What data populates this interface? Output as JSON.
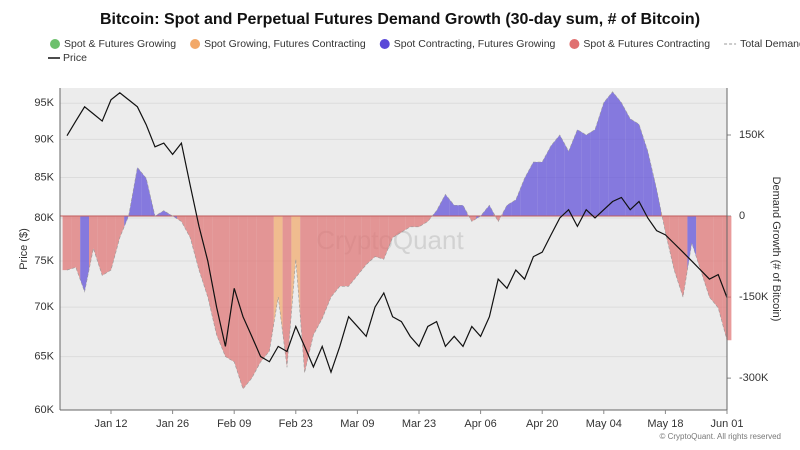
{
  "chart_data": {
    "type": "price-demand",
    "title": "Bitcoin: Spot and Perpetual Futures Demand Growth (30-day sum, # of Bitcoin)",
    "ylabel": "Price ($)",
    "y2label": "Demand Growth (# of Bitcoin)",
    "watermark": "CryptoQuant",
    "footer": "© CryptoQuant. All rights reserved",
    "categories": [
      null,
      null,
      null,
      null,
      null,
      "Jan 12",
      null,
      null,
      null,
      null,
      null,
      null,
      "Jan 26",
      null,
      null,
      null,
      null,
      null,
      null,
      "Feb 09",
      null,
      null,
      null,
      null,
      null,
      null,
      "Feb 23",
      null,
      null,
      null,
      null,
      null,
      null,
      "Mar 09",
      null,
      null,
      null,
      null,
      null,
      null,
      "Mar 23",
      null,
      null,
      null,
      null,
      null,
      null,
      "Apr 06",
      null,
      null,
      null,
      null,
      null,
      null,
      "Apr 20",
      null,
      null,
      null,
      null,
      null,
      null,
      "May 04",
      null,
      null,
      null,
      null,
      null,
      null,
      "May 18",
      null,
      null,
      null,
      null,
      null,
      null,
      "Jun 01"
    ],
    "ylim": [
      60000,
      97200
    ],
    "ylog": true,
    "yticks": [
      {
        "value": 60000,
        "label": "60K"
      },
      {
        "value": 65000,
        "label": "65K"
      },
      {
        "value": 70000,
        "label": "70K"
      },
      {
        "value": 75000,
        "label": "75K"
      },
      {
        "value": 80000,
        "label": "80K"
      },
      {
        "value": 85000,
        "label": "85K"
      },
      {
        "value": 90000,
        "label": "90K"
      },
      {
        "value": 95000,
        "label": "95K"
      }
    ],
    "y2lim": [
      -359000,
      237000
    ],
    "y2ticks": [
      {
        "value": -300000,
        "label": "-300K"
      },
      {
        "value": -150000,
        "label": "-150K"
      },
      0,
      {
        "value": 150000,
        "label": "150K"
      }
    ],
    "grid": true,
    "regimes": [
      {
        "name": "Spot & Futures Growing",
        "color": "#6cc06c"
      },
      {
        "name": "Spot Growing, Futures Contracting",
        "color": "#f2a868"
      },
      {
        "name": "Spot Contracting, Futures Growing",
        "color": "#5a48d8"
      },
      {
        "name": "Spot & Futures Contracting",
        "color": "#e07070"
      }
    ],
    "series": [
      {
        "name": "Price",
        "color": "#111111",
        "axis": "y",
        "values": [
          90500,
          92500,
          94500,
          93500,
          92500,
          95500,
          96500,
          95500,
          94500,
          92000,
          89000,
          89500,
          88000,
          89500,
          84000,
          79000,
          75000,
          70000,
          66000,
          72000,
          69000,
          67000,
          65000,
          64500,
          66000,
          65500,
          68000,
          66000,
          64000,
          66000,
          63500,
          66000,
          69000,
          68000,
          67000,
          70000,
          71500,
          69000,
          68500,
          67000,
          66000,
          68000,
          68500,
          66000,
          67000,
          66000,
          68000,
          67000,
          69000,
          73000,
          72000,
          74000,
          73000,
          75500,
          76000,
          78000,
          80000,
          81000,
          79000,
          81000,
          80000,
          81000,
          82000,
          82500,
          81000,
          82000,
          80000,
          78500,
          78000,
          77000,
          76000,
          75000,
          74000,
          73000,
          73500,
          71000
        ]
      },
      {
        "name": "Total Demand",
        "color": "#999999",
        "axis": "y2",
        "values": [
          -100000,
          -95000,
          -140000,
          -60000,
          -110000,
          -100000,
          -40000,
          0,
          90000,
          70000,
          0,
          10000,
          0,
          -10000,
          -40000,
          -100000,
          -150000,
          -220000,
          -260000,
          -270000,
          -320000,
          -300000,
          -270000,
          -250000,
          -150000,
          -280000,
          -80000,
          -290000,
          -220000,
          -190000,
          -150000,
          -130000,
          -130000,
          -110000,
          -90000,
          -75000,
          -80000,
          -40000,
          -30000,
          -20000,
          -20000,
          -10000,
          10000,
          40000,
          20000,
          20000,
          -10000,
          0,
          20000,
          -10000,
          20000,
          30000,
          70000,
          100000,
          100000,
          130000,
          150000,
          120000,
          160000,
          150000,
          160000,
          210000,
          230000,
          210000,
          180000,
          170000,
          120000,
          50000,
          -30000,
          -100000,
          -150000,
          -50000,
          -100000,
          -150000,
          -170000,
          -230000
        ],
        "regime": [
          3,
          3,
          2,
          3,
          3,
          3,
          3,
          2,
          2,
          2,
          2,
          2,
          2,
          3,
          3,
          3,
          3,
          3,
          3,
          3,
          3,
          3,
          3,
          3,
          1,
          3,
          1,
          3,
          3,
          3,
          3,
          3,
          3,
          3,
          3,
          3,
          3,
          3,
          3,
          3,
          3,
          3,
          2,
          2,
          2,
          2,
          3,
          2,
          2,
          3,
          2,
          2,
          2,
          2,
          2,
          2,
          2,
          2,
          2,
          2,
          2,
          2,
          2,
          2,
          2,
          2,
          2,
          2,
          3,
          3,
          3,
          2,
          3,
          3,
          3,
          3
        ]
      }
    ]
  }
}
